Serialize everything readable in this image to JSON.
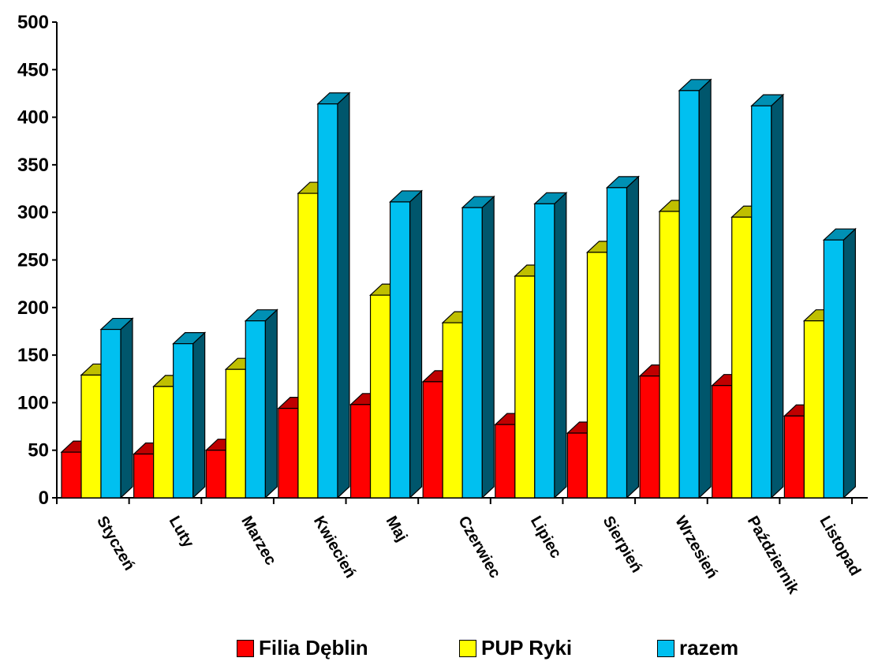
{
  "chart_data": {
    "type": "bar",
    "title": "",
    "xlabel": "",
    "ylabel": "",
    "ylim": [
      0,
      500
    ],
    "yticks": [
      "0",
      "50",
      "100",
      "150",
      "200",
      "250",
      "300",
      "350",
      "400",
      "450",
      "500"
    ],
    "categories": [
      "Styczeń",
      "Luty",
      "Marzec",
      "Kwiecień",
      "Maj",
      "Czerwiec",
      "Lipiec",
      "Sierpień",
      "Wrzesień",
      "Październik",
      "Listopad"
    ],
    "series": [
      {
        "name": "Filia Dęblin",
        "color": "#ff0000",
        "values": [
          48,
          46,
          50,
          94,
          98,
          122,
          77,
          68,
          128,
          118,
          86
        ]
      },
      {
        "name": "PUP Ryki",
        "color": "#ffff00",
        "values": [
          129,
          117,
          135,
          320,
          213,
          184,
          233,
          258,
          301,
          295,
          186
        ]
      },
      {
        "name": "razem",
        "color": "#00c0f0",
        "values": [
          177,
          162,
          186,
          414,
          311,
          305,
          309,
          326,
          428,
          412,
          271
        ]
      }
    ],
    "legend_position": "bottom",
    "grid": false,
    "style": "3d-clustered-bar"
  }
}
